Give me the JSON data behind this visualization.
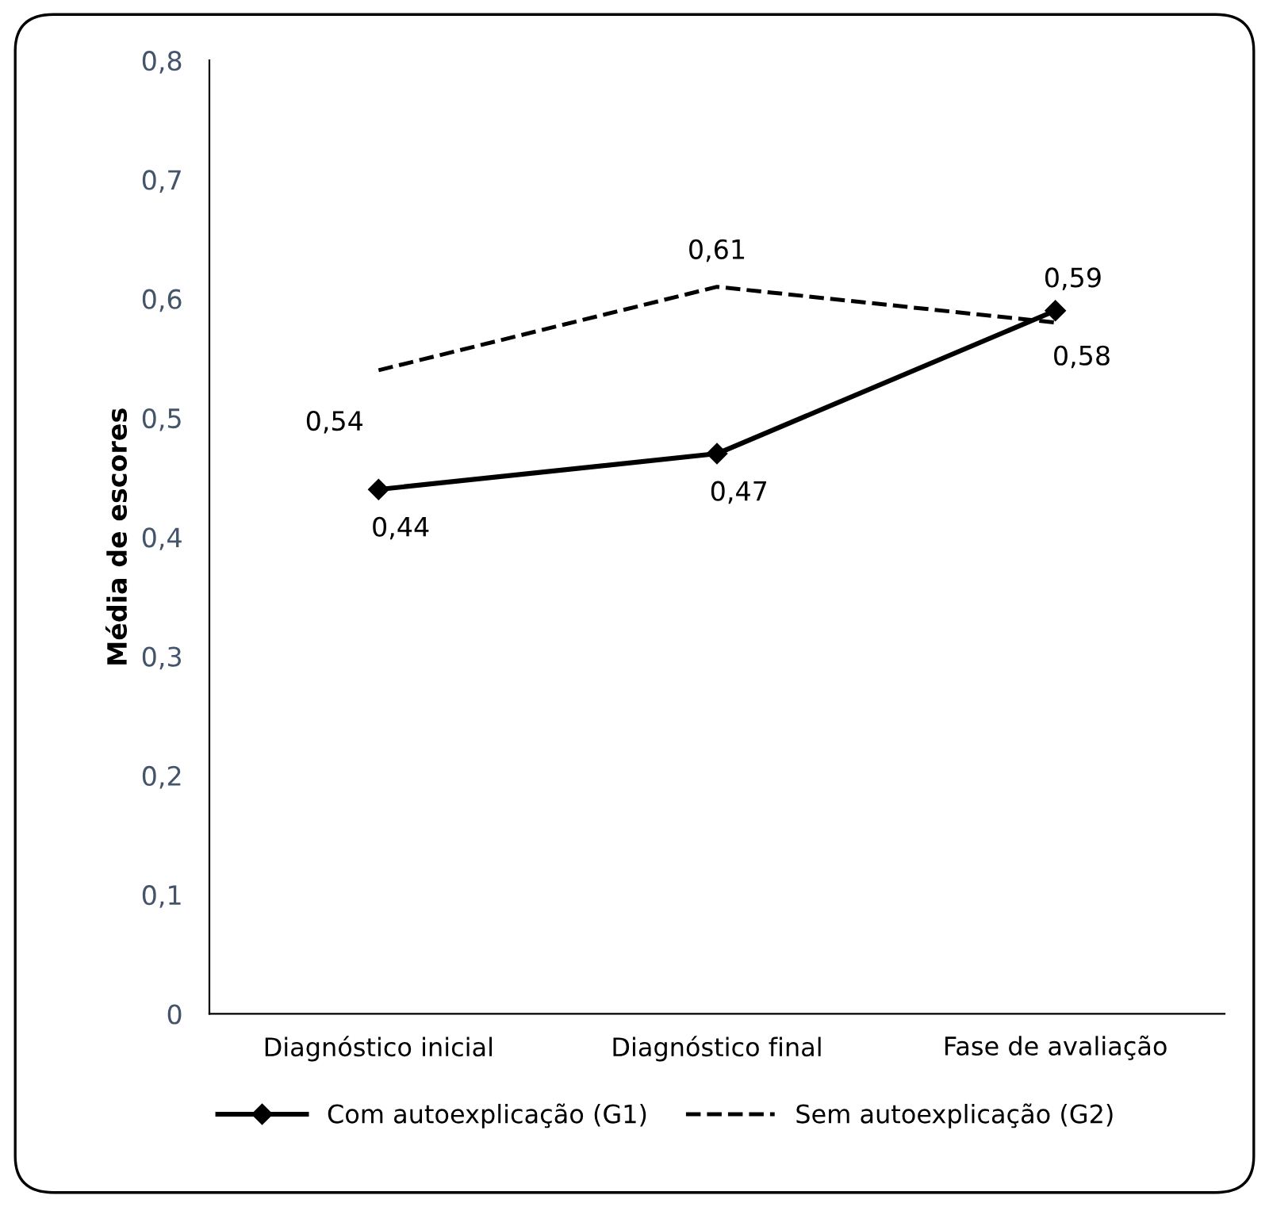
{
  "chart_data": {
    "type": "line",
    "ylabel": "Média de escores",
    "categories": [
      "Diagnóstico inicial",
      "Diagnóstico final",
      "Fase de avaliação"
    ],
    "series": [
      {
        "name": "Com autoexplicação (G1)",
        "color": "#000000",
        "values": [
          0.44,
          0.47,
          0.59
        ],
        "value_labels": [
          "0,44",
          "0,47",
          "0,59"
        ],
        "marker": "diamond",
        "line_style": "solid"
      },
      {
        "name": "Sem autoexplicação (G2)",
        "color": "#000000",
        "values": [
          0.54,
          0.61,
          0.58
        ],
        "value_labels": [
          "0,54",
          "0,61",
          "0,58"
        ],
        "marker": "none",
        "line_style": "dashed"
      }
    ],
    "ylim": [
      0,
      0.8
    ],
    "yticks": [
      0,
      {
        "value": 0.1,
        "label": "0,1"
      },
      {
        "value": 0.2,
        "label": "0,2"
      },
      {
        "value": 0.3,
        "label": "0,3"
      },
      {
        "value": 0.4,
        "label": "0,4"
      },
      {
        "value": 0.5,
        "label": "0,5"
      },
      {
        "value": 0.6,
        "label": "0,6"
      },
      {
        "value": 0.7,
        "label": "0,7"
      },
      {
        "value": 0.8,
        "label": "0,8"
      }
    ],
    "grid": false,
    "legend": "bottom"
  }
}
